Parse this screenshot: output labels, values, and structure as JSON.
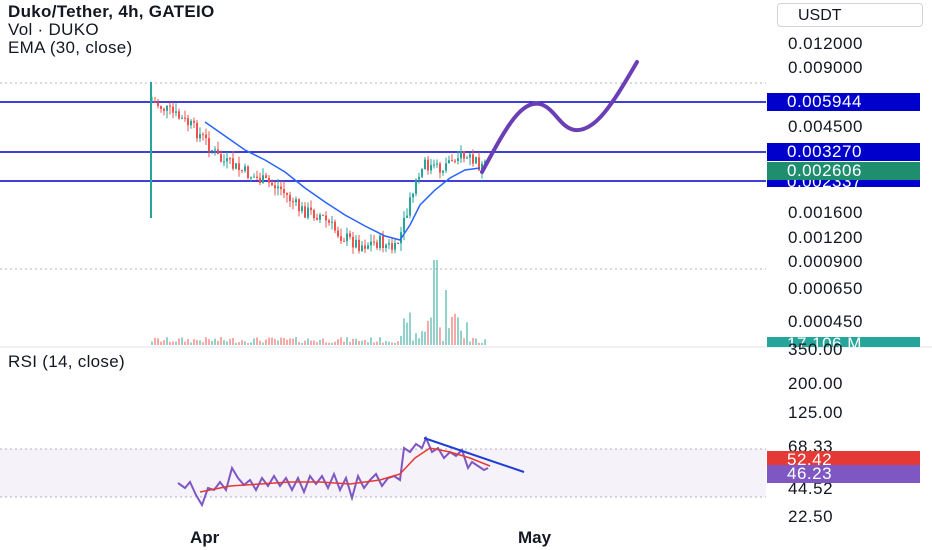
{
  "legend": {
    "title": "Duko/Tether, 4h, GATEIO",
    "vol": "Vol · DUKO",
    "ema": "EMA (30, close)",
    "rsi": "RSI (14, close)"
  },
  "currency_button": "USDT",
  "price_axis": [
    "0.012000",
    "0.009000",
    "0.004500",
    "0.001600",
    "0.001200",
    "0.000900",
    "0.000650",
    "0.000450"
  ],
  "price_tags": {
    "level_high": "0.005944",
    "level_mid": "0.003270",
    "current": "0.002606",
    "level_low": "0.002337",
    "volume": "17.106 M"
  },
  "rsi_axis": [
    "350.00",
    "200.00",
    "125.00",
    "68.33",
    "44.52",
    "22.50"
  ],
  "rsi_tags": {
    "rsi_value": "52.42",
    "rsi_ma": "46.23"
  },
  "time_axis": [
    "Apr",
    "May"
  ],
  "colors": {
    "level_line": "#0000cc",
    "ema_line": "#2962ff",
    "up": "#26a69a",
    "down": "#ef5350",
    "projection": "#6a3fb5",
    "rsi_line": "#7e57c2",
    "rsi_ma": "#e53935",
    "current_tag": "#1e8e6e",
    "volume_tag": "#26a69a",
    "rsi_tag": "#e53935",
    "rsi_ma_tag": "#7e57c2"
  }
}
